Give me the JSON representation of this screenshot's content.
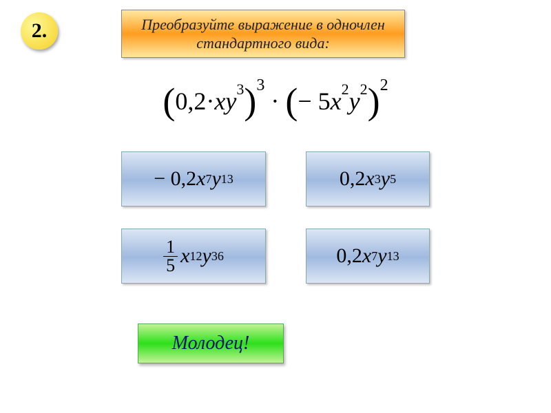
{
  "badge": {
    "number": "2."
  },
  "title": {
    "text": "Преобразуйте выражение в одночлен стандартного вида:"
  },
  "expression": {
    "part1_coef": "0,2·",
    "part1_var1": "xy",
    "part1_exp1": "3",
    "part1_outer_exp": "3",
    "dot": " · ",
    "part2_coef": "− 5",
    "part2_var1": "x",
    "part2_exp1": "2",
    "part2_var2": "y",
    "part2_exp2": "2",
    "part2_outer_exp": "2"
  },
  "answers": {
    "a1": {
      "prefix": "− 0,2",
      "v1": "x",
      "e1": "7",
      "v2": "y",
      "e2": "13"
    },
    "a2": {
      "prefix": "0,2",
      "v1": "x",
      "e1": "3",
      "v2": "y",
      "e2": "5"
    },
    "a3": {
      "frac_num": "1",
      "frac_den": "5",
      "v1": "x",
      "e1": "12",
      "v2": "y",
      "e2": "36"
    },
    "a4": {
      "prefix": "0,2",
      "v1": "x",
      "e1": "7",
      "v2": "y",
      "e2": "13"
    }
  },
  "feedback": {
    "text": "Молодец!"
  },
  "colors": {
    "badge_gradient": [
      "#fff89a",
      "#f5d020"
    ],
    "title_gradient": [
      "#ffe8a0",
      "#ff9d1f",
      "#ffe8a0"
    ],
    "answer_gradient": [
      "#dce6f5",
      "#a5bde1",
      "#9fb9df",
      "#dce6f5"
    ],
    "feedback_gradient": [
      "#c3f296",
      "#2de01a",
      "#c3f296"
    ],
    "feedback_text": "#05186b",
    "background": "#ffffff"
  }
}
